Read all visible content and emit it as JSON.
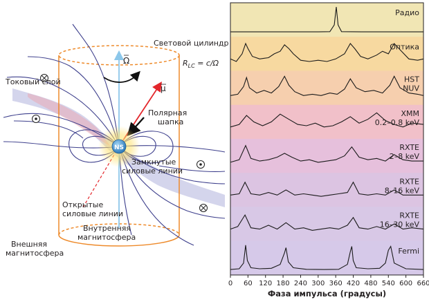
{
  "diagram": {
    "light_cylinder_label": "Световой цилиндр",
    "rlc_label": "R",
    "rlc_sub": "LC",
    "rlc_rest": " = c/Ω",
    "omega_label": "Ω",
    "mu_label": "μ",
    "current_sheet_label": "Токовый слой",
    "polar_cap_label": [
      "Полярная",
      "шапка"
    ],
    "closed_lines_label": [
      "Замкнутые",
      "силовые линии"
    ],
    "open_lines_label": [
      "Открытые",
      "силовые линии"
    ],
    "inner_magnetosphere_label": [
      "Внутренняя",
      "магнитосфера"
    ],
    "outer_magnetosphere_label": [
      "Внешняя",
      "магнитосфера"
    ],
    "ns_label": "NS"
  },
  "chart_data": {
    "type": "line",
    "xlabel": "Фаза импульса (градусы)",
    "x_ticks": [
      0,
      60,
      120,
      180,
      240,
      300,
      360,
      420,
      480,
      540,
      600,
      660
    ],
    "xlim": [
      0,
      660
    ],
    "bands": [
      {
        "name": [
          "Радио"
        ],
        "color": "#f1e6b4"
      },
      {
        "name": [
          "Оптика"
        ],
        "color": "#f7d9a0"
      },
      {
        "name": [
          "HST",
          "NUV"
        ],
        "color": "#f6cfae"
      },
      {
        "name": [
          "XMM",
          "0.2–0.8 keV"
        ],
        "color": "#f1c0c9"
      },
      {
        "name": [
          "RXTE",
          "2–8 keV"
        ],
        "color": "#e6c0dc"
      },
      {
        "name": [
          "RXTE",
          "8–16 keV"
        ],
        "color": "#dcc4e2"
      },
      {
        "name": [
          "RXTE",
          "16–30 keV"
        ],
        "color": "#d8c8e6"
      },
      {
        "name": [
          "Fermi"
        ],
        "color": "#d6c9e9"
      }
    ],
    "series": [
      {
        "x": [
          0,
          100,
          200,
          300,
          340,
          355,
          362,
          368,
          380,
          450,
          560,
          660
        ],
        "y": [
          0.03,
          0.03,
          0.03,
          0.03,
          0.04,
          0.3,
          1.0,
          0.3,
          0.04,
          0.03,
          0.03,
          0.03
        ]
      },
      {
        "x": [
          0,
          20,
          40,
          52,
          60,
          75,
          100,
          130,
          150,
          170,
          185,
          200,
          215,
          240,
          270,
          300,
          330,
          360,
          390,
          410,
          425,
          445,
          470,
          500,
          520,
          540,
          560,
          585,
          610,
          640,
          660
        ],
        "y": [
          0.3,
          0.2,
          0.5,
          0.9,
          0.7,
          0.4,
          0.3,
          0.35,
          0.5,
          0.6,
          0.85,
          0.7,
          0.5,
          0.25,
          0.2,
          0.25,
          0.2,
          0.3,
          0.5,
          0.9,
          0.7,
          0.4,
          0.3,
          0.45,
          0.6,
          0.5,
          0.9,
          0.6,
          0.3,
          0.25,
          0.3
        ]
      },
      {
        "x": [
          0,
          25,
          45,
          55,
          65,
          90,
          115,
          140,
          165,
          185,
          200,
          220,
          250,
          280,
          310,
          340,
          365,
          390,
          410,
          430,
          460,
          490,
          520,
          545,
          560,
          580,
          610,
          640,
          660
        ],
        "y": [
          0.2,
          0.25,
          0.55,
          0.9,
          0.5,
          0.3,
          0.4,
          0.3,
          0.55,
          0.95,
          0.6,
          0.35,
          0.2,
          0.25,
          0.2,
          0.3,
          0.25,
          0.45,
          0.85,
          0.5,
          0.35,
          0.4,
          0.3,
          0.6,
          0.95,
          0.5,
          0.3,
          0.25,
          0.2
        ]
      },
      {
        "x": [
          0,
          30,
          55,
          80,
          110,
          140,
          170,
          200,
          230,
          260,
          290,
          320,
          350,
          380,
          410,
          440,
          470,
          500,
          530,
          560,
          590,
          620,
          660
        ],
        "y": [
          0.3,
          0.4,
          0.75,
          0.5,
          0.35,
          0.5,
          0.8,
          0.6,
          0.4,
          0.35,
          0.45,
          0.3,
          0.35,
          0.5,
          0.7,
          0.45,
          0.6,
          0.85,
          0.55,
          0.4,
          0.3,
          0.45,
          0.4
        ]
      },
      {
        "x": [
          0,
          30,
          52,
          70,
          100,
          130,
          160,
          185,
          210,
          240,
          270,
          300,
          330,
          360,
          390,
          415,
          440,
          470,
          500,
          530,
          560,
          590,
          620,
          660
        ],
        "y": [
          0.25,
          0.35,
          0.9,
          0.4,
          0.3,
          0.35,
          0.45,
          0.6,
          0.45,
          0.3,
          0.35,
          0.25,
          0.3,
          0.35,
          0.5,
          0.85,
          0.45,
          0.35,
          0.4,
          0.3,
          0.55,
          0.35,
          0.3,
          0.3
        ]
      },
      {
        "x": [
          0,
          30,
          50,
          70,
          100,
          130,
          160,
          190,
          220,
          250,
          280,
          310,
          340,
          370,
          400,
          420,
          440,
          470,
          500,
          530,
          560,
          590,
          620,
          660
        ],
        "y": [
          0.3,
          0.35,
          0.8,
          0.35,
          0.3,
          0.4,
          0.3,
          0.5,
          0.3,
          0.35,
          0.3,
          0.25,
          0.3,
          0.35,
          0.4,
          0.8,
          0.35,
          0.3,
          0.35,
          0.3,
          0.5,
          0.3,
          0.3,
          0.3
        ]
      },
      {
        "x": [
          0,
          25,
          50,
          70,
          100,
          130,
          160,
          190,
          220,
          250,
          280,
          310,
          340,
          370,
          400,
          420,
          440,
          470,
          500,
          530,
          560,
          590,
          620,
          660
        ],
        "y": [
          0.3,
          0.4,
          0.85,
          0.35,
          0.3,
          0.45,
          0.3,
          0.55,
          0.3,
          0.35,
          0.25,
          0.3,
          0.35,
          0.3,
          0.45,
          0.75,
          0.35,
          0.3,
          0.4,
          0.3,
          0.5,
          0.3,
          0.35,
          0.3
        ]
      },
      {
        "x": [
          0,
          30,
          45,
          52,
          58,
          70,
          100,
          140,
          170,
          185,
          190,
          198,
          215,
          260,
          320,
          370,
          400,
          410,
          415,
          420,
          430,
          470,
          510,
          530,
          540,
          548,
          560,
          600,
          660
        ],
        "y": [
          0.05,
          0.08,
          0.3,
          1.0,
          0.4,
          0.12,
          0.08,
          0.1,
          0.25,
          0.7,
          0.9,
          0.35,
          0.12,
          0.06,
          0.05,
          0.06,
          0.25,
          0.75,
          0.95,
          0.4,
          0.12,
          0.08,
          0.1,
          0.3,
          0.8,
          0.95,
          0.3,
          0.08,
          0.05
        ]
      }
    ]
  }
}
